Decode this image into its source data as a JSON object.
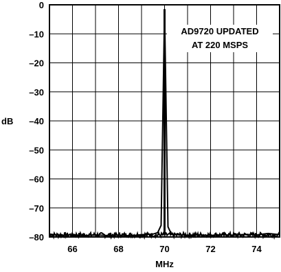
{
  "chart_data": {
    "type": "line",
    "title": "",
    "xlabel": "MHz",
    "ylabel": "dB",
    "xlim": [
      65,
      75
    ],
    "ylim": [
      -80,
      0
    ],
    "xticks": [
      66,
      68,
      70,
      72,
      74
    ],
    "xtick_labels": [
      "66",
      "68",
      "70",
      "72",
      "74"
    ],
    "yticks": [
      0,
      -10,
      -20,
      -30,
      -40,
      -50,
      -60,
      -70,
      -80
    ],
    "ytick_labels": [
      "0",
      "–10",
      "–20",
      "–30",
      "–40",
      "–50",
      "–60",
      "–70",
      "–80"
    ],
    "grid": true,
    "annotation": {
      "lines": [
        "AD9720 UPDATED",
        "AT 220 MSPS"
      ]
    },
    "series": [
      {
        "x": [
          65.0,
          65.5,
          66.0,
          66.5,
          67.0,
          67.5,
          68.0,
          68.5,
          69.0,
          69.5,
          69.7,
          69.85,
          70.0,
          70.15,
          70.3,
          70.5,
          71.0,
          71.5,
          72.0,
          72.5,
          73.0,
          73.5,
          74.0,
          74.5,
          75.0
        ],
        "y": [
          -79,
          -79.5,
          -79.2,
          -79.6,
          -79.3,
          -79.5,
          -79.4,
          -79.6,
          -79.2,
          -79.0,
          -78.5,
          -76,
          -1.5,
          -76.5,
          -79,
          -79.2,
          -79.4,
          -79.3,
          -79.5,
          -79.2,
          -79.4,
          -79.1,
          -79.3,
          -78.8,
          -79.2
        ]
      }
    ]
  }
}
